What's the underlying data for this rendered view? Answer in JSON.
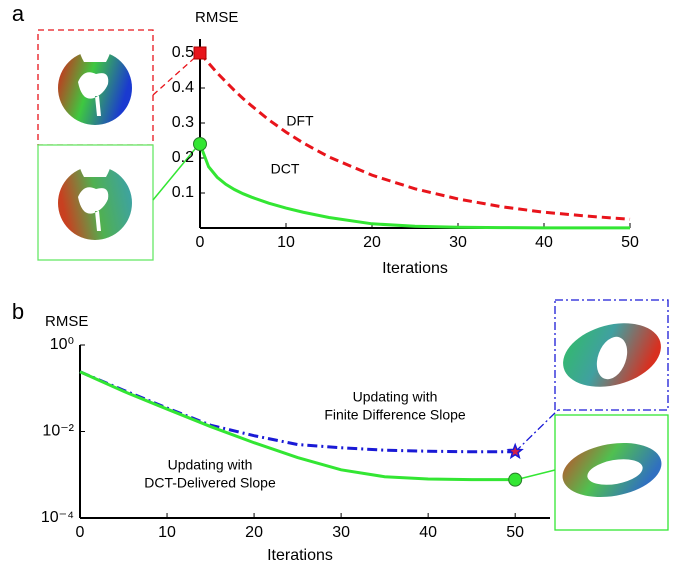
{
  "chart_data": [
    {
      "type": "line",
      "label": "a",
      "y_label": "RMSE",
      "x_label": "Iterations",
      "x": [
        0,
        1,
        2,
        3,
        4,
        5,
        6,
        8,
        10,
        12,
        15,
        20,
        25,
        30,
        35,
        40,
        45,
        50
      ],
      "xlim": [
        0,
        50
      ],
      "xticks": [
        0,
        10,
        20,
        30,
        40,
        50
      ],
      "ylim": [
        0,
        0.54
      ],
      "yticks": [
        0.1,
        0.2,
        0.3,
        0.4,
        0.5
      ],
      "series": [
        {
          "name": "DFT",
          "color": "#e8141b",
          "linestyle": "dashed",
          "values": [
            0.5,
            0.471,
            0.443,
            0.418,
            0.393,
            0.37,
            0.349,
            0.309,
            0.274,
            0.243,
            0.203,
            0.151,
            0.112,
            0.083,
            0.061,
            0.045,
            0.034,
            0.025
          ]
        },
        {
          "name": "DCT",
          "color": "#33e633",
          "linestyle": "solid",
          "values": [
            0.24,
            0.175,
            0.145,
            0.125,
            0.11,
            0.098,
            0.088,
            0.071,
            0.057,
            0.045,
            0.03,
            0.012,
            0.005,
            0.002,
            0.001,
            0.0005,
            0.0003,
            0.0002
          ]
        }
      ]
    },
    {
      "type": "line",
      "label": "b",
      "y_label": "RMSE",
      "x_label": "Iterations",
      "yscale": "log",
      "x": [
        0,
        5,
        10,
        15,
        20,
        25,
        30,
        35,
        40,
        45,
        50
      ],
      "xlim": [
        0,
        54
      ],
      "xticks": [
        0,
        10,
        20,
        30,
        40,
        50
      ],
      "ylim": [
        0.0001,
        1
      ],
      "yticks": [
        {
          "value": 0.0001,
          "label": "10⁻⁴"
        },
        {
          "value": 0.01,
          "label": "10⁻²"
        },
        {
          "value": 1,
          "label": "10⁰"
        }
      ],
      "series": [
        {
          "name": [
            "Updating with",
            "Finite Difference Slope"
          ],
          "color": "#1a1ad6",
          "linestyle": "dashdot",
          "values": [
            0.24,
            0.09,
            0.035,
            0.014,
            0.008,
            0.005,
            0.0042,
            0.0037,
            0.0035,
            0.0034,
            0.0034
          ]
        },
        {
          "name": [
            "Updating with",
            "DCT-Delivered Slope"
          ],
          "color": "#33e633",
          "linestyle": "solid",
          "values": [
            0.24,
            0.085,
            0.033,
            0.013,
            0.0055,
            0.0025,
            0.0013,
            0.0009,
            0.0008,
            0.00077,
            0.00077
          ]
        }
      ]
    }
  ]
}
